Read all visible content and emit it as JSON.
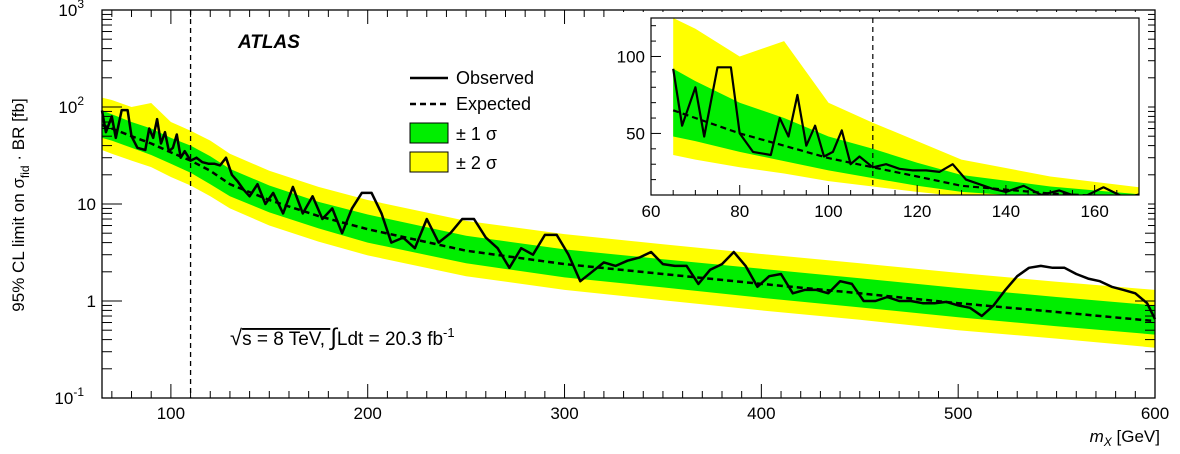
{
  "chart_data": {
    "type": "line",
    "experiment_label": "ATLAS",
    "ylabel": "95% CL limit on σ_fid · BR [fb]",
    "ylabel_parts": {
      "main": "95% CL limit on σ",
      "sub": "fid",
      "tail": " · BR [fb]"
    },
    "xlabel": "m_X [GeV]",
    "xlabel_parts": {
      "var": "m",
      "sub": "X",
      "unit": " [GeV]"
    },
    "annotation_parts": {
      "sqrt": "√",
      "s": "s = 8 TeV, ",
      "integral": "∫",
      "ldt": "Ldt = 20.3 fb",
      "sup": "-1"
    },
    "xlim": [
      65,
      600
    ],
    "ylim": [
      0.1,
      1000
    ],
    "y_scale": "log",
    "x_ticks": [
      100,
      200,
      300,
      400,
      500,
      600
    ],
    "y_tick_labels": [
      {
        "value": 0.1,
        "base": "10",
        "exp": "-1"
      },
      {
        "value": 1,
        "base": "1",
        "exp": ""
      },
      {
        "value": 10,
        "base": "10",
        "exp": ""
      },
      {
        "value": 100,
        "base": "10",
        "exp": "2"
      },
      {
        "value": 1000,
        "base": "10",
        "exp": "3"
      }
    ],
    "vertical_marker_x": 110,
    "legend": {
      "placement": "top-center",
      "entries": [
        {
          "label": "Observed",
          "style": "solid-line"
        },
        {
          "label": "Expected",
          "style": "dashed-line"
        },
        {
          "label": "± 1 σ",
          "style": "band",
          "color": "#00ee00"
        },
        {
          "label": "± 2 σ",
          "style": "band",
          "color": "#ffff00"
        }
      ]
    },
    "colors": {
      "band_1sigma": "#00ee00",
      "band_2sigma": "#ffff00",
      "lines": "#000000"
    },
    "expected": {
      "x": [
        65,
        70,
        80,
        90,
        100,
        110,
        120,
        130,
        150,
        175,
        200,
        250,
        300,
        350,
        400,
        450,
        500,
        550,
        600
      ],
      "y": [
        65,
        60,
        50,
        42,
        34,
        28,
        22,
        16,
        11,
        7.5,
        5.5,
        3.3,
        2.4,
        1.9,
        1.5,
        1.2,
        0.95,
        0.77,
        0.62
      ]
    },
    "band_1sigma": {
      "x": [
        65,
        70,
        80,
        90,
        100,
        110,
        120,
        130,
        150,
        175,
        200,
        250,
        300,
        350,
        400,
        450,
        500,
        550,
        600
      ],
      "low": [
        48,
        45,
        38,
        32,
        26,
        21,
        16,
        12,
        8.2,
        5.6,
        4.0,
        2.45,
        1.75,
        1.38,
        1.08,
        0.86,
        0.68,
        0.55,
        0.45
      ],
      "high": [
        92,
        84,
        70,
        60,
        48,
        40,
        31,
        23,
        15.5,
        10.5,
        7.8,
        4.7,
        3.4,
        2.7,
        2.15,
        1.72,
        1.36,
        1.1,
        0.9
      ]
    },
    "band_2sigma": {
      "x": [
        65,
        70,
        80,
        90,
        100,
        110,
        120,
        130,
        150,
        175,
        200,
        250,
        300,
        350,
        400,
        450,
        500,
        550,
        600
      ],
      "low": [
        36,
        33,
        28,
        24,
        19,
        15.5,
        12,
        9,
        6.0,
        4.1,
        2.95,
        1.8,
        1.3,
        1.02,
        0.8,
        0.64,
        0.5,
        0.41,
        0.33
      ],
      "high": [
        125,
        118,
        100,
        110,
        70,
        57,
        45,
        33,
        22,
        15,
        11,
        6.7,
        4.9,
        3.85,
        3.05,
        2.45,
        1.95,
        1.58,
        1.3
      ]
    },
    "observed": {
      "x": [
        65,
        67,
        70,
        72,
        75,
        78,
        80,
        83,
        85,
        87,
        89,
        91,
        93,
        95,
        97,
        99,
        101,
        103,
        105,
        107,
        110,
        113,
        116,
        119,
        122,
        125,
        128,
        131,
        134,
        137,
        140,
        144,
        148,
        152,
        157,
        162,
        167,
        172,
        177,
        182,
        187,
        192,
        197,
        202,
        207,
        212,
        218,
        224,
        230,
        236,
        242,
        248,
        254,
        260,
        266,
        272,
        278,
        284,
        290,
        296,
        302,
        308,
        314,
        320,
        326,
        332,
        338,
        344,
        350,
        356,
        362,
        368,
        374,
        380,
        386,
        392,
        398,
        404,
        410,
        416,
        422,
        428,
        434,
        440,
        446,
        452,
        458,
        464,
        470,
        476,
        482,
        488,
        494,
        500,
        506,
        512,
        518,
        524,
        530,
        536,
        542,
        548,
        554,
        560,
        566,
        572,
        578,
        584,
        590,
        596,
        600
      ],
      "y": [
        92,
        55,
        80,
        48,
        93,
        93,
        50,
        38,
        37,
        36,
        60,
        48,
        75,
        42,
        55,
        35,
        38,
        52,
        30,
        35,
        28,
        30,
        27,
        26,
        26,
        25,
        30,
        20,
        17,
        14,
        12,
        16,
        10,
        13,
        8,
        15,
        8,
        12,
        7,
        9,
        5,
        9,
        13,
        13,
        8,
        4,
        4.5,
        3.5,
        7,
        4,
        5,
        7,
        7,
        4.5,
        3.5,
        2.2,
        3.5,
        3,
        4.8,
        4.8,
        3,
        1.6,
        2,
        2.5,
        2.3,
        2.6,
        2.8,
        3.2,
        2.4,
        2.3,
        2.3,
        1.5,
        2.1,
        2.4,
        3.2,
        2.3,
        1.4,
        1.8,
        1.9,
        1.2,
        1.3,
        1.3,
        1.2,
        1.6,
        1.5,
        1.0,
        1.0,
        1.1,
        1.0,
        1.0,
        0.95,
        0.95,
        0.98,
        0.9,
        0.85,
        0.7,
        0.9,
        1.3,
        1.8,
        2.2,
        2.3,
        2.2,
        2.2,
        1.9,
        1.7,
        1.6,
        1.4,
        1.3,
        1.2,
        0.95,
        0.65
      ]
    },
    "inset": {
      "xlim": [
        60,
        170
      ],
      "ylim": [
        10,
        125
      ],
      "y_scale": "linear",
      "x_ticks": [
        60,
        80,
        100,
        120,
        140,
        160
      ],
      "y_ticks": [
        50,
        100
      ],
      "vertical_marker_x": 110
    }
  }
}
